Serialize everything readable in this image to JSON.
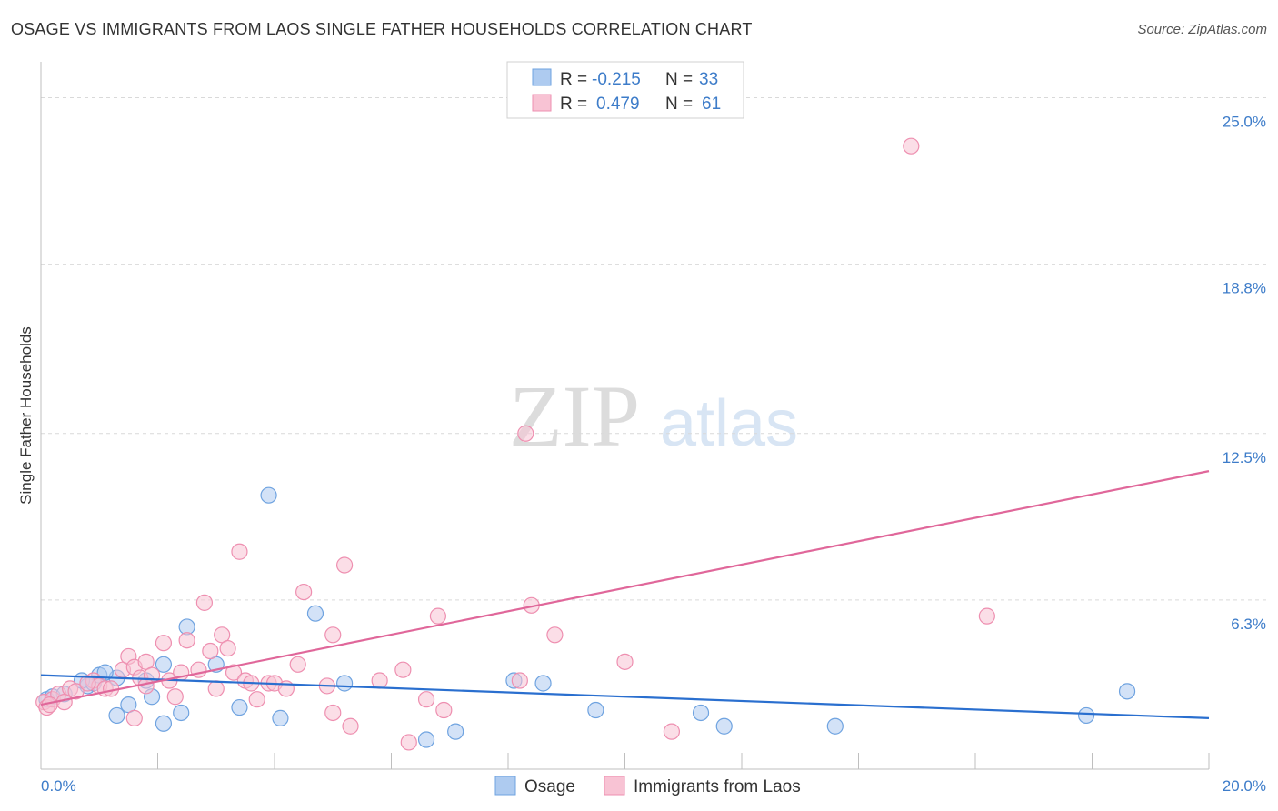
{
  "title": "OSAGE VS IMMIGRANTS FROM LAOS SINGLE FATHER HOUSEHOLDS CORRELATION CHART",
  "source": "Source: ZipAtlas.com",
  "watermark": {
    "zip": "ZIP",
    "atlas": "atlas"
  },
  "legend_top": {
    "rows": [
      {
        "r_label": "R =",
        "r_value": "-0.215",
        "n_label": "N =",
        "n_value": "33"
      },
      {
        "r_label": "R =",
        "r_value": "0.479",
        "n_label": "N =",
        "n_value": "61"
      }
    ]
  },
  "chart_data": {
    "type": "scatter",
    "title": "OSAGE VS IMMIGRANTS FROM LAOS SINGLE FATHER HOUSEHOLDS CORRELATION CHART",
    "xlabel": "",
    "ylabel": "Single Father Households",
    "xlim": [
      0,
      20
    ],
    "ylim": [
      0,
      26
    ],
    "x_tick_labels": [
      "0.0%",
      "20.0%"
    ],
    "y_ticks": [
      6.3,
      12.5,
      18.8,
      25.0
    ],
    "y_tick_labels": [
      "6.3%",
      "12.5%",
      "18.8%",
      "25.0%"
    ],
    "series": [
      {
        "name": "Osage",
        "color": "#6fa3e0",
        "fill": "#aecbf0",
        "line_color": "#2a6fcf",
        "trend": {
          "x0": 0,
          "y0": 3.5,
          "x1": 20,
          "y1": 1.9
        },
        "points": [
          [
            0.1,
            2.6
          ],
          [
            0.2,
            2.7
          ],
          [
            0.4,
            2.8
          ],
          [
            0.8,
            3.1
          ],
          [
            0.9,
            3.2
          ],
          [
            1.0,
            3.5
          ],
          [
            1.3,
            3.4
          ],
          [
            1.1,
            3.6
          ],
          [
            0.7,
            3.3
          ],
          [
            1.5,
            2.4
          ],
          [
            1.9,
            2.7
          ],
          [
            1.3,
            2.0
          ],
          [
            1.8,
            3.3
          ],
          [
            2.1,
            3.9
          ],
          [
            2.1,
            1.7
          ],
          [
            2.5,
            5.3
          ],
          [
            2.4,
            2.1
          ],
          [
            3.0,
            3.9
          ],
          [
            3.4,
            2.3
          ],
          [
            3.9,
            10.2
          ],
          [
            4.1,
            1.9
          ],
          [
            4.7,
            5.8
          ],
          [
            5.2,
            3.2
          ],
          [
            6.6,
            1.1
          ],
          [
            7.1,
            1.4
          ],
          [
            8.1,
            3.3
          ],
          [
            8.6,
            3.2
          ],
          [
            9.5,
            2.2
          ],
          [
            11.3,
            2.1
          ],
          [
            11.7,
            1.6
          ],
          [
            13.6,
            1.6
          ],
          [
            17.9,
            2.0
          ],
          [
            18.6,
            2.9
          ]
        ]
      },
      {
        "name": "Immigrants from Laos",
        "color": "#ee8fb0",
        "fill": "#f8c3d4",
        "line_color": "#e0679a",
        "trend": {
          "x0": 0,
          "y0": 2.4,
          "x1": 20,
          "y1": 11.1
        },
        "points": [
          [
            0.05,
            2.5
          ],
          [
            0.1,
            2.3
          ],
          [
            0.2,
            2.6
          ],
          [
            0.3,
            2.8
          ],
          [
            0.5,
            3.0
          ],
          [
            0.6,
            2.9
          ],
          [
            0.9,
            3.3
          ],
          [
            1.0,
            3.1
          ],
          [
            1.1,
            3.0
          ],
          [
            1.4,
            3.7
          ],
          [
            1.5,
            4.2
          ],
          [
            1.6,
            3.8
          ],
          [
            1.7,
            3.4
          ],
          [
            1.8,
            4.0
          ],
          [
            1.9,
            3.5
          ],
          [
            2.1,
            4.7
          ],
          [
            2.2,
            3.3
          ],
          [
            2.3,
            2.7
          ],
          [
            2.5,
            4.8
          ],
          [
            2.7,
            3.7
          ],
          [
            2.8,
            6.2
          ],
          [
            2.9,
            4.4
          ],
          [
            3.1,
            5.0
          ],
          [
            3.2,
            4.5
          ],
          [
            3.3,
            3.6
          ],
          [
            3.4,
            8.1
          ],
          [
            3.5,
            3.3
          ],
          [
            3.6,
            3.2
          ],
          [
            3.7,
            2.6
          ],
          [
            3.9,
            3.2
          ],
          [
            4.0,
            3.2
          ],
          [
            4.2,
            3.0
          ],
          [
            4.4,
            3.9
          ],
          [
            4.5,
            6.6
          ],
          [
            4.9,
            3.1
          ],
          [
            5.0,
            2.1
          ],
          [
            5.0,
            5.0
          ],
          [
            5.2,
            7.6
          ],
          [
            5.3,
            1.6
          ],
          [
            5.8,
            3.3
          ],
          [
            6.2,
            3.7
          ],
          [
            6.3,
            1.0
          ],
          [
            6.6,
            2.6
          ],
          [
            6.8,
            5.7
          ],
          [
            6.9,
            2.2
          ],
          [
            8.2,
            3.3
          ],
          [
            8.3,
            12.5
          ],
          [
            8.4,
            6.1
          ],
          [
            8.8,
            5.0
          ],
          [
            10.0,
            4.0
          ],
          [
            10.8,
            1.4
          ],
          [
            14.9,
            23.2
          ],
          [
            16.2,
            5.7
          ],
          [
            1.2,
            3.0
          ],
          [
            0.4,
            2.5
          ],
          [
            1.8,
            3.1
          ],
          [
            2.4,
            3.6
          ],
          [
            0.8,
            3.2
          ],
          [
            3.0,
            3.0
          ],
          [
            0.15,
            2.4
          ],
          [
            1.6,
            1.9
          ]
        ]
      }
    ]
  },
  "legend_bottom": [
    {
      "label": "Osage"
    },
    {
      "label": "Immigrants from Laos"
    }
  ],
  "colors": {
    "blue": "#3d7cc9",
    "grid": "#d9d9d9",
    "axis": "#bfbfbf"
  }
}
